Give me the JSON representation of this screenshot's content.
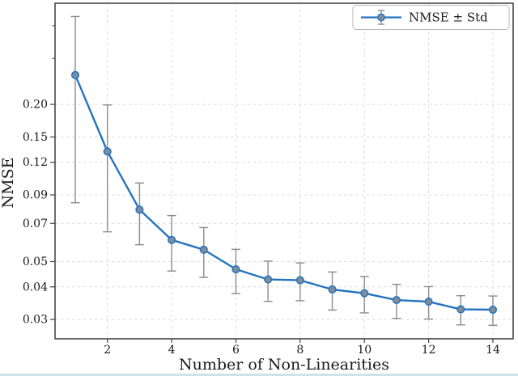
{
  "chart_data": {
    "type": "line",
    "title": "",
    "xlabel": "Number of Non-Linearities",
    "ylabel": "NMSE",
    "legend": [
      "NMSE ± Std"
    ],
    "legend_position": "upper right",
    "grid": true,
    "yscale": "log",
    "x": [
      1,
      2,
      3,
      4,
      5,
      6,
      7,
      8,
      9,
      10,
      11,
      12,
      13,
      14
    ],
    "series": [
      {
        "name": "NMSE ± Std",
        "values": [
          0.259,
          0.132,
          0.079,
          0.0605,
          0.0555,
          0.0467,
          0.0427,
          0.0424,
          0.0391,
          0.0378,
          0.0356,
          0.0351,
          0.0328,
          0.0327
        ],
        "std": [
          0.175,
          0.067,
          0.021,
          0.0145,
          0.012,
          0.009,
          0.0075,
          0.007,
          0.0065,
          0.006,
          0.0053,
          0.005,
          0.0042,
          0.0042
        ]
      }
    ],
    "xlim": [
      0.37,
      14.63
    ],
    "ylim": [
      0.0253,
      0.488
    ],
    "xticks": [
      2,
      4,
      6,
      8,
      10,
      12,
      14
    ],
    "xtick_labels": [
      "2",
      "4",
      "6",
      "8",
      "10",
      "12",
      "14"
    ],
    "yticks": [
      0.2,
      0.15,
      0.12,
      0.09,
      0.07,
      0.05,
      0.04,
      0.03
    ],
    "ytick_labels": [
      "0.20",
      "0.15",
      "0.12",
      "0.09",
      "0.07",
      "0.05",
      "0.04",
      "0.03"
    ],
    "yticks_minor": [
      0.4,
      0.3
    ],
    "colors": {
      "line": "#2474c0",
      "marker_fill": "#7f8c9b",
      "marker_edge": "#2474c0",
      "errorbar": "#8c8c8c",
      "grid": "#dcdcdc",
      "frame": "#3b3b3b",
      "tick": "#444444",
      "text": "#1a1a1a",
      "background": "#ffffff",
      "legend_border": "#b8b8b8",
      "bottom_strip": "#cfe2ea"
    }
  }
}
